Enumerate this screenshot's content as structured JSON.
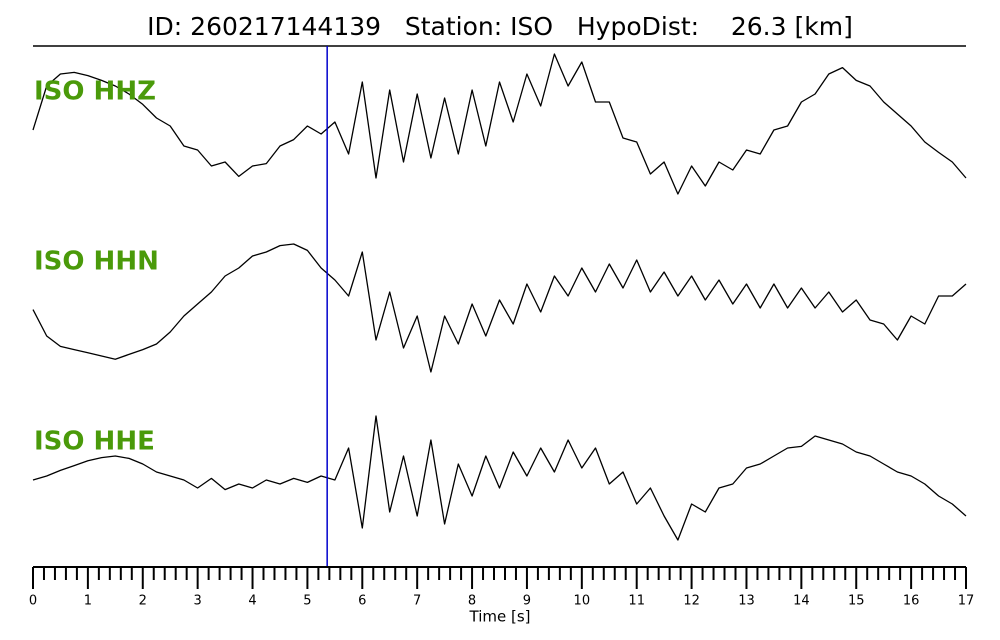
{
  "chart_data": {
    "type": "waveform",
    "title": "ID: 260217144139   Station: ISO   HypoDist:    26.3 [km]",
    "xlabel": "Time [s]",
    "xlim": [
      0,
      17
    ],
    "xticks": [
      0,
      1,
      2,
      3,
      4,
      5,
      6,
      7,
      8,
      9,
      10,
      11,
      12,
      13,
      14,
      15,
      16,
      17
    ],
    "minor_ticks_per_major": 5,
    "ylim": [
      -1,
      1
    ],
    "pick": {
      "x": 5.36,
      "color": "#0000cc"
    },
    "label_color": "#4a9a0a",
    "x": [
      0,
      0.25,
      0.5,
      0.75,
      1,
      1.25,
      1.5,
      1.75,
      2,
      2.25,
      2.5,
      2.75,
      3,
      3.25,
      3.5,
      3.75,
      4,
      4.25,
      4.5,
      4.75,
      5,
      5.25,
      5.5,
      5.75,
      6,
      6.25,
      6.5,
      6.75,
      7,
      7.25,
      7.5,
      7.75,
      8,
      8.25,
      8.5,
      8.75,
      9,
      9.25,
      9.5,
      9.75,
      10,
      10.25,
      10.5,
      10.75,
      11,
      11.25,
      11.5,
      11.75,
      12,
      12.25,
      12.5,
      12.75,
      13,
      13.25,
      13.5,
      13.75,
      14,
      14.25,
      14.5,
      14.75,
      15,
      15.25,
      15.5,
      15.75,
      16,
      16.25,
      16.5,
      16.75,
      17
    ],
    "series": [
      {
        "name": "ISO HHZ",
        "color": "#000000",
        "values": [
          0.0,
          0.55,
          0.7,
          0.72,
          0.68,
          0.62,
          0.55,
          0.45,
          0.32,
          0.15,
          0.05,
          -0.2,
          -0.25,
          -0.45,
          -0.4,
          -0.58,
          -0.45,
          -0.42,
          -0.2,
          -0.12,
          0.05,
          -0.05,
          0.1,
          -0.3,
          0.6,
          -0.6,
          0.5,
          -0.4,
          0.45,
          -0.35,
          0.4,
          -0.3,
          0.5,
          -0.2,
          0.6,
          0.1,
          0.7,
          0.3,
          0.95,
          0.55,
          0.85,
          0.35,
          0.35,
          -0.1,
          -0.15,
          -0.55,
          -0.4,
          -0.8,
          -0.45,
          -0.7,
          -0.4,
          -0.5,
          -0.25,
          -0.3,
          0.0,
          0.05,
          0.35,
          0.45,
          0.7,
          0.78,
          0.62,
          0.55,
          0.35,
          0.2,
          0.05,
          -0.15,
          -0.28,
          -0.4,
          -0.6
        ]
      },
      {
        "name": "ISO HHN",
        "color": "#000000",
        "values": [
          -0.12,
          -0.45,
          -0.58,
          -0.62,
          -0.66,
          -0.7,
          -0.74,
          -0.68,
          -0.62,
          -0.55,
          -0.4,
          -0.2,
          -0.05,
          0.1,
          0.3,
          0.4,
          0.55,
          0.6,
          0.68,
          0.7,
          0.62,
          0.4,
          0.25,
          0.05,
          0.6,
          -0.5,
          0.1,
          -0.6,
          -0.2,
          -0.9,
          -0.2,
          -0.55,
          -0.05,
          -0.45,
          0.0,
          -0.3,
          0.2,
          -0.15,
          0.3,
          0.05,
          0.4,
          0.1,
          0.45,
          0.15,
          0.5,
          0.1,
          0.35,
          0.05,
          0.3,
          0.0,
          0.25,
          -0.05,
          0.2,
          -0.1,
          0.2,
          -0.1,
          0.15,
          -0.1,
          0.1,
          -0.15,
          0.0,
          -0.25,
          -0.3,
          -0.5,
          -0.2,
          -0.3,
          0.05,
          0.05,
          0.2
        ]
      },
      {
        "name": "ISO HHE",
        "color": "#000000",
        "values": [
          0.0,
          0.05,
          0.12,
          0.18,
          0.24,
          0.28,
          0.3,
          0.27,
          0.2,
          0.1,
          0.05,
          0.0,
          -0.1,
          0.02,
          -0.12,
          -0.05,
          -0.1,
          0.0,
          -0.05,
          0.02,
          -0.03,
          0.05,
          0.0,
          0.4,
          -0.6,
          0.8,
          -0.4,
          0.3,
          -0.45,
          0.5,
          -0.55,
          0.2,
          -0.2,
          0.3,
          -0.1,
          0.35,
          0.05,
          0.4,
          0.1,
          0.5,
          0.15,
          0.4,
          -0.05,
          0.1,
          -0.3,
          -0.1,
          -0.45,
          -0.75,
          -0.3,
          -0.4,
          -0.1,
          -0.05,
          0.15,
          0.2,
          0.3,
          0.4,
          0.42,
          0.55,
          0.5,
          0.45,
          0.35,
          0.3,
          0.2,
          0.1,
          0.05,
          -0.05,
          -0.2,
          -0.3,
          -0.45
        ]
      }
    ]
  }
}
